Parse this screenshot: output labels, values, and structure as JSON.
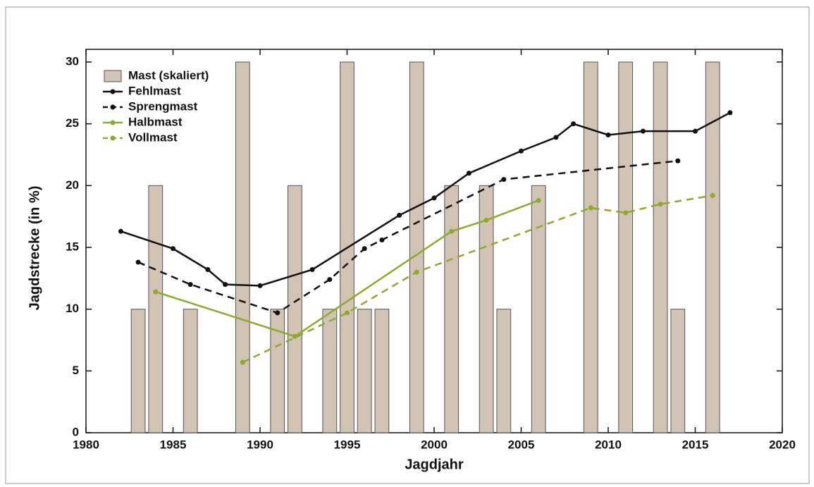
{
  "chart_data": {
    "type": "combo",
    "x_label": "Jagdjahr",
    "y_label": "Jagdstrecke (in %)",
    "xlim": [
      1980,
      2020
    ],
    "xticks": [
      1980,
      1985,
      1990,
      1995,
      2000,
      2005,
      2010,
      2015,
      2020
    ],
    "ylim": [
      0,
      30
    ],
    "yticks": [
      0,
      5,
      10,
      15,
      20,
      25,
      30
    ],
    "legend": "upper left",
    "series": [
      {
        "name": "Mast (skaliert)",
        "type": "bar",
        "color": "#d2c4b4",
        "x": [
          1983,
          1984,
          1986,
          1989,
          1991,
          1992,
          1994,
          1995,
          1996,
          1997,
          1999,
          2001,
          2003,
          2004,
          2006,
          2009,
          2011,
          2013,
          2014,
          2016
        ],
        "values": [
          10,
          20,
          10,
          30,
          10,
          20,
          10,
          30,
          10,
          10,
          30,
          20,
          20,
          10,
          20,
          30,
          30,
          30,
          10,
          30
        ]
      },
      {
        "name": "Fehlmast",
        "type": "line",
        "dash": false,
        "color": "#111111",
        "x": [
          1982,
          1985,
          1987,
          1988,
          1990,
          1993,
          1998,
          2000,
          2002,
          2005,
          2007,
          2008,
          2010,
          2012,
          2015,
          2017
        ],
        "values": [
          16.3,
          14.9,
          13.2,
          12.0,
          11.9,
          13.2,
          17.6,
          19.0,
          21.0,
          22.8,
          23.9,
          25.0,
          24.1,
          24.4,
          24.4,
          25.9
        ]
      },
      {
        "name": "Sprengmast",
        "type": "line",
        "dash": true,
        "color": "#111111",
        "x": [
          1983,
          1986,
          1991,
          1994,
          1996,
          1997,
          2004,
          2014
        ],
        "values": [
          13.8,
          12.0,
          9.7,
          12.4,
          14.9,
          15.6,
          20.5,
          22.0
        ]
      },
      {
        "name": "Halbmast",
        "type": "line",
        "dash": false,
        "color": "#8aab2e",
        "x": [
          1984,
          1992,
          2001,
          2003,
          2006
        ],
        "values": [
          11.4,
          7.8,
          16.3,
          17.2,
          18.8
        ]
      },
      {
        "name": "Vollmast",
        "type": "line",
        "dash": true,
        "color": "#8aab2e",
        "x": [
          1989,
          1995,
          1999,
          2009,
          2011,
          2013,
          2016
        ],
        "values": [
          5.7,
          9.7,
          13.0,
          18.2,
          17.8,
          18.5,
          19.2
        ]
      }
    ]
  }
}
